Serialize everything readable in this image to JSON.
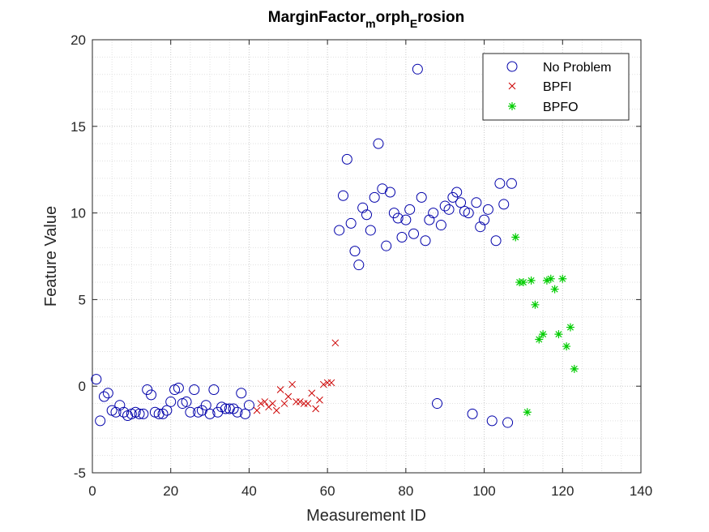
{
  "chart_data": {
    "type": "scatter",
    "title": {
      "part1": "MarginFactor",
      "sub1": "m",
      "part2": "orph",
      "sub2": "E",
      "part3": "rosion"
    },
    "xlabel": "Measurement ID",
    "ylabel": "Feature Value",
    "xlim": [
      0,
      140
    ],
    "ylim": [
      -5,
      20
    ],
    "xticks": [
      0,
      20,
      40,
      60,
      80,
      100,
      120,
      140
    ],
    "yticks": [
      -5,
      0,
      5,
      10,
      15,
      20
    ],
    "xtick_labels": [
      "0",
      "20",
      "40",
      "60",
      "80",
      "100",
      "120",
      "140"
    ],
    "ytick_labels": [
      "-5",
      "0",
      "5",
      "10",
      "15",
      "20"
    ],
    "grid": "major and minor, dotted",
    "legend_position": "top-right",
    "series": [
      {
        "name": "No Problem",
        "marker": "circle",
        "color": "#0000aa",
        "points": [
          [
            1,
            0.4
          ],
          [
            2,
            -2.0
          ],
          [
            3,
            -0.6
          ],
          [
            4,
            -0.4
          ],
          [
            5,
            -1.4
          ],
          [
            6,
            -1.5
          ],
          [
            7,
            -1.1
          ],
          [
            8,
            -1.5
          ],
          [
            9,
            -1.7
          ],
          [
            10,
            -1.6
          ],
          [
            11,
            -1.5
          ],
          [
            12,
            -1.6
          ],
          [
            13,
            -1.6
          ],
          [
            14,
            -0.2
          ],
          [
            15,
            -0.5
          ],
          [
            16,
            -1.5
          ],
          [
            17,
            -1.6
          ],
          [
            18,
            -1.6
          ],
          [
            19,
            -1.4
          ],
          [
            20,
            -0.9
          ],
          [
            21,
            -0.2
          ],
          [
            22,
            -0.1
          ],
          [
            23,
            -1.0
          ],
          [
            24,
            -0.9
          ],
          [
            25,
            -1.5
          ],
          [
            26,
            -0.2
          ],
          [
            27,
            -1.5
          ],
          [
            28,
            -1.4
          ],
          [
            29,
            -1.1
          ],
          [
            30,
            -1.6
          ],
          [
            31,
            -0.2
          ],
          [
            32,
            -1.5
          ],
          [
            33,
            -1.2
          ],
          [
            34,
            -1.3
          ],
          [
            35,
            -1.3
          ],
          [
            36,
            -1.3
          ],
          [
            37,
            -1.5
          ],
          [
            38,
            -0.4
          ],
          [
            39,
            -1.6
          ],
          [
            40,
            -1.1
          ],
          [
            63,
            9.0
          ],
          [
            64,
            11.0
          ],
          [
            65,
            13.1
          ],
          [
            66,
            9.4
          ],
          [
            67,
            7.8
          ],
          [
            68,
            7.0
          ],
          [
            69,
            10.3
          ],
          [
            70,
            9.9
          ],
          [
            71,
            9.0
          ],
          [
            72,
            10.9
          ],
          [
            73,
            14.0
          ],
          [
            74,
            11.4
          ],
          [
            75,
            8.1
          ],
          [
            76,
            11.2
          ],
          [
            77,
            10.0
          ],
          [
            78,
            9.7
          ],
          [
            79,
            8.6
          ],
          [
            80,
            9.6
          ],
          [
            81,
            10.2
          ],
          [
            82,
            8.8
          ],
          [
            83,
            18.3
          ],
          [
            84,
            10.9
          ],
          [
            85,
            8.4
          ],
          [
            86,
            9.6
          ],
          [
            87,
            10.0
          ],
          [
            88,
            -1.0
          ],
          [
            89,
            9.3
          ],
          [
            90,
            10.4
          ],
          [
            91,
            10.2
          ],
          [
            92,
            10.9
          ],
          [
            93,
            11.2
          ],
          [
            94,
            10.6
          ],
          [
            95,
            10.1
          ],
          [
            96,
            10.0
          ],
          [
            97,
            -1.6
          ],
          [
            98,
            10.6
          ],
          [
            99,
            9.2
          ],
          [
            100,
            9.6
          ],
          [
            101,
            10.2
          ],
          [
            102,
            -2.0
          ],
          [
            103,
            8.4
          ],
          [
            104,
            11.7
          ],
          [
            105,
            10.5
          ],
          [
            106,
            -2.1
          ],
          [
            107,
            11.7
          ]
        ]
      },
      {
        "name": "BPFI",
        "marker": "x",
        "color": "#cc0000",
        "points": [
          [
            42,
            -1.4
          ],
          [
            43,
            -1.0
          ],
          [
            44,
            -0.9
          ],
          [
            45,
            -1.2
          ],
          [
            46,
            -1.0
          ],
          [
            47,
            -1.4
          ],
          [
            48,
            -0.2
          ],
          [
            49,
            -1.0
          ],
          [
            50,
            -0.6
          ],
          [
            51,
            0.1
          ],
          [
            52,
            -0.9
          ],
          [
            53,
            -0.9
          ],
          [
            54,
            -1.0
          ],
          [
            55,
            -1.0
          ],
          [
            56,
            -0.4
          ],
          [
            57,
            -1.3
          ],
          [
            58,
            -0.8
          ],
          [
            59,
            0.1
          ],
          [
            60,
            0.2
          ],
          [
            61,
            0.2
          ],
          [
            62,
            2.5
          ]
        ]
      },
      {
        "name": "BPFO",
        "marker": "asterisk",
        "color": "#00cc00",
        "points": [
          [
            108,
            8.6
          ],
          [
            109,
            6.0
          ],
          [
            110,
            6.0
          ],
          [
            111,
            -1.5
          ],
          [
            112,
            6.1
          ],
          [
            113,
            4.7
          ],
          [
            114,
            2.7
          ],
          [
            115,
            3.0
          ],
          [
            116,
            6.1
          ],
          [
            117,
            6.2
          ],
          [
            118,
            5.6
          ],
          [
            119,
            3.0
          ],
          [
            120,
            6.2
          ],
          [
            121,
            2.3
          ],
          [
            122,
            3.4
          ],
          [
            123,
            1.0
          ]
        ]
      }
    ]
  }
}
